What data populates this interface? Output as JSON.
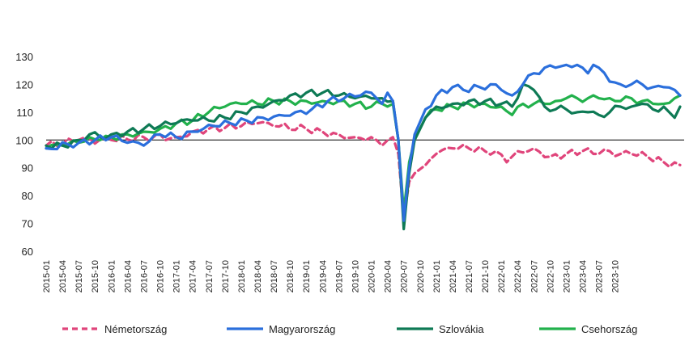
{
  "chart_data": {
    "type": "line",
    "title": "",
    "xlabel": "",
    "ylabel": "",
    "ylim": [
      60,
      130
    ],
    "yticks": [
      60,
      70,
      80,
      90,
      100,
      110,
      120,
      130
    ],
    "reference_line": 100,
    "grid": false,
    "legend_position": "bottom",
    "x_start": "2015-01",
    "x_ticks": [
      "2015-01",
      "2015-04",
      "2015-07",
      "2015-10",
      "2016-01",
      "2016-04",
      "2016-07",
      "2016-10",
      "2017-01",
      "2017-04",
      "2017-07",
      "2017-10",
      "2018-01",
      "2018-04",
      "2018-07",
      "2018-10",
      "2019-01",
      "2019-04",
      "2019-07",
      "2019-10",
      "2020-01",
      "2020-04",
      "2020-07",
      "2020-10",
      "2021-01",
      "2021-04",
      "2021-07",
      "2021-10",
      "2022-01",
      "2022-04",
      "2022-07",
      "2022-10",
      "2023-01",
      "2023-04",
      "2023-07",
      "2023-10"
    ],
    "series": [
      {
        "name": "Németország",
        "color": "#E0457B",
        "dash": true,
        "anchors": [
          [
            0,
            98
          ],
          [
            6,
            100
          ],
          [
            12,
            100
          ],
          [
            18,
            101
          ],
          [
            24,
            101
          ],
          [
            27,
            103
          ],
          [
            30,
            104
          ],
          [
            36,
            105
          ],
          [
            39,
            106
          ],
          [
            42,
            105
          ],
          [
            48,
            104
          ],
          [
            51,
            103
          ],
          [
            54,
            102
          ],
          [
            57,
            101
          ],
          [
            60,
            101
          ],
          [
            62,
            98
          ],
          [
            64,
            101
          ],
          [
            65,
            95
          ],
          [
            66,
            72
          ],
          [
            67,
            85
          ],
          [
            68,
            88
          ],
          [
            70,
            91
          ],
          [
            72,
            95
          ],
          [
            75,
            97
          ],
          [
            78,
            97
          ],
          [
            81,
            96
          ],
          [
            83,
            96
          ],
          [
            85,
            92
          ],
          [
            87,
            96
          ],
          [
            90,
            97
          ],
          [
            93,
            94
          ],
          [
            96,
            95
          ],
          [
            99,
            96
          ],
          [
            102,
            95
          ],
          [
            104,
            96
          ],
          [
            106,
            95
          ],
          [
            108,
            95
          ],
          [
            111,
            94
          ],
          [
            114,
            92
          ],
          [
            117,
            91
          ]
        ]
      },
      {
        "name": "Magyarország",
        "color": "#2B6FDC",
        "dash": false,
        "anchors": [
          [
            0,
            97
          ],
          [
            6,
            99
          ],
          [
            12,
            101
          ],
          [
            15,
            99
          ],
          [
            18,
            98
          ],
          [
            21,
            102
          ],
          [
            24,
            101
          ],
          [
            28,
            103
          ],
          [
            31,
            105
          ],
          [
            34,
            106
          ],
          [
            37,
            107
          ],
          [
            40,
            108
          ],
          [
            43,
            109
          ],
          [
            46,
            110
          ],
          [
            49,
            111
          ],
          [
            52,
            114
          ],
          [
            55,
            115
          ],
          [
            58,
            116
          ],
          [
            60,
            117
          ],
          [
            61,
            115
          ],
          [
            62,
            113
          ],
          [
            63,
            117
          ],
          [
            64,
            114
          ],
          [
            65,
            100
          ],
          [
            66,
            71
          ],
          [
            67,
            90
          ],
          [
            68,
            102
          ],
          [
            70,
            111
          ],
          [
            72,
            116
          ],
          [
            75,
            119
          ],
          [
            77,
            118
          ],
          [
            80,
            119
          ],
          [
            82,
            120
          ],
          [
            84,
            118
          ],
          [
            86,
            116
          ],
          [
            88,
            120
          ],
          [
            90,
            124
          ],
          [
            92,
            126
          ],
          [
            94,
            126
          ],
          [
            96,
            127
          ],
          [
            98,
            127
          ],
          [
            99,
            126
          ],
          [
            100,
            124
          ],
          [
            101,
            127
          ],
          [
            102,
            126
          ],
          [
            104,
            121
          ],
          [
            106,
            120
          ],
          [
            108,
            120
          ],
          [
            110,
            120
          ],
          [
            112,
            119
          ],
          [
            114,
            119
          ],
          [
            116,
            118
          ],
          [
            117,
            116
          ]
        ]
      },
      {
        "name": "Szlovákia",
        "color": "#0E7A55",
        "dash": false,
        "anchors": [
          [
            0,
            98
          ],
          [
            3,
            98
          ],
          [
            6,
            100
          ],
          [
            8,
            102
          ],
          [
            10,
            101
          ],
          [
            12,
            102
          ],
          [
            15,
            103
          ],
          [
            18,
            104
          ],
          [
            21,
            105
          ],
          [
            24,
            106
          ],
          [
            27,
            107
          ],
          [
            30,
            107
          ],
          [
            33,
            108
          ],
          [
            36,
            110
          ],
          [
            39,
            112
          ],
          [
            42,
            114
          ],
          [
            45,
            116
          ],
          [
            48,
            117
          ],
          [
            51,
            117
          ],
          [
            54,
            116
          ],
          [
            57,
            115
          ],
          [
            60,
            115
          ],
          [
            62,
            115
          ],
          [
            64,
            114
          ],
          [
            65,
            100
          ],
          [
            66,
            68
          ],
          [
            67,
            88
          ],
          [
            68,
            100
          ],
          [
            70,
            108
          ],
          [
            72,
            112
          ],
          [
            75,
            113
          ],
          [
            78,
            114
          ],
          [
            81,
            114
          ],
          [
            84,
            113
          ],
          [
            86,
            112
          ],
          [
            88,
            120
          ],
          [
            90,
            118
          ],
          [
            92,
            112
          ],
          [
            94,
            111
          ],
          [
            96,
            111
          ],
          [
            98,
            110
          ],
          [
            100,
            110
          ],
          [
            102,
            109
          ],
          [
            104,
            110
          ],
          [
            106,
            112
          ],
          [
            108,
            112
          ],
          [
            110,
            113
          ],
          [
            112,
            111
          ],
          [
            114,
            112
          ],
          [
            115,
            110
          ],
          [
            116,
            108
          ],
          [
            117,
            112
          ]
        ]
      },
      {
        "name": "Csehország",
        "color": "#22B14C",
        "dash": false,
        "anchors": [
          [
            0,
            97
          ],
          [
            3,
            98
          ],
          [
            6,
            99
          ],
          [
            8,
            101
          ],
          [
            10,
            100
          ],
          [
            12,
            101
          ],
          [
            15,
            102
          ],
          [
            18,
            103
          ],
          [
            21,
            104
          ],
          [
            24,
            106
          ],
          [
            27,
            107
          ],
          [
            30,
            110
          ],
          [
            33,
            112
          ],
          [
            36,
            113
          ],
          [
            39,
            113
          ],
          [
            42,
            114
          ],
          [
            45,
            114
          ],
          [
            48,
            114
          ],
          [
            51,
            114
          ],
          [
            54,
            114
          ],
          [
            57,
            113
          ],
          [
            60,
            112
          ],
          [
            62,
            113
          ],
          [
            64,
            113
          ],
          [
            65,
            100
          ],
          [
            66,
            74
          ],
          [
            67,
            92
          ],
          [
            68,
            100
          ],
          [
            70,
            108
          ],
          [
            72,
            111
          ],
          [
            75,
            112
          ],
          [
            78,
            113
          ],
          [
            81,
            113
          ],
          [
            84,
            112
          ],
          [
            86,
            109
          ],
          [
            88,
            113
          ],
          [
            90,
            113
          ],
          [
            92,
            113
          ],
          [
            94,
            114
          ],
          [
            96,
            115
          ],
          [
            98,
            115
          ],
          [
            100,
            115
          ],
          [
            102,
            115
          ],
          [
            104,
            115
          ],
          [
            106,
            114
          ],
          [
            108,
            115
          ],
          [
            110,
            114
          ],
          [
            112,
            113
          ],
          [
            114,
            113
          ],
          [
            116,
            115
          ],
          [
            117,
            116
          ]
        ]
      }
    ]
  }
}
